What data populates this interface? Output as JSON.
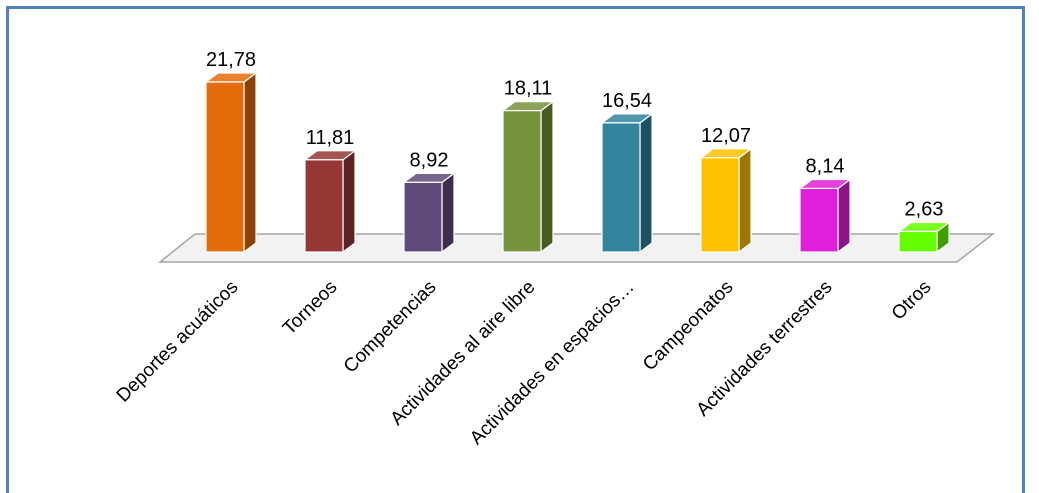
{
  "chart_data": {
    "type": "bar",
    "title": "",
    "xlabel": "",
    "ylabel": "",
    "categories": [
      "Deportes acuáticos",
      "Torneos",
      "Competencias",
      "Actividades al aire libre",
      "Actividades en espacios…",
      "Campeonatos",
      "Actividades terrestres",
      "Otros"
    ],
    "values": [
      21.78,
      11.81,
      8.92,
      18.11,
      16.54,
      12.07,
      8.14,
      2.63
    ],
    "value_labels": [
      "21,78",
      "11,81",
      "8,92",
      "18,11",
      "16,54",
      "12,07",
      "8,14",
      "2,63"
    ],
    "ylim": [
      0,
      22
    ],
    "grid": false,
    "legend": "none",
    "bar_colors": [
      "#e46c0a",
      "#953735",
      "#604a7b",
      "#77933c",
      "#31849b",
      "#ffc000",
      "#e020d8",
      "#66ff00"
    ],
    "style": "3d-column"
  }
}
